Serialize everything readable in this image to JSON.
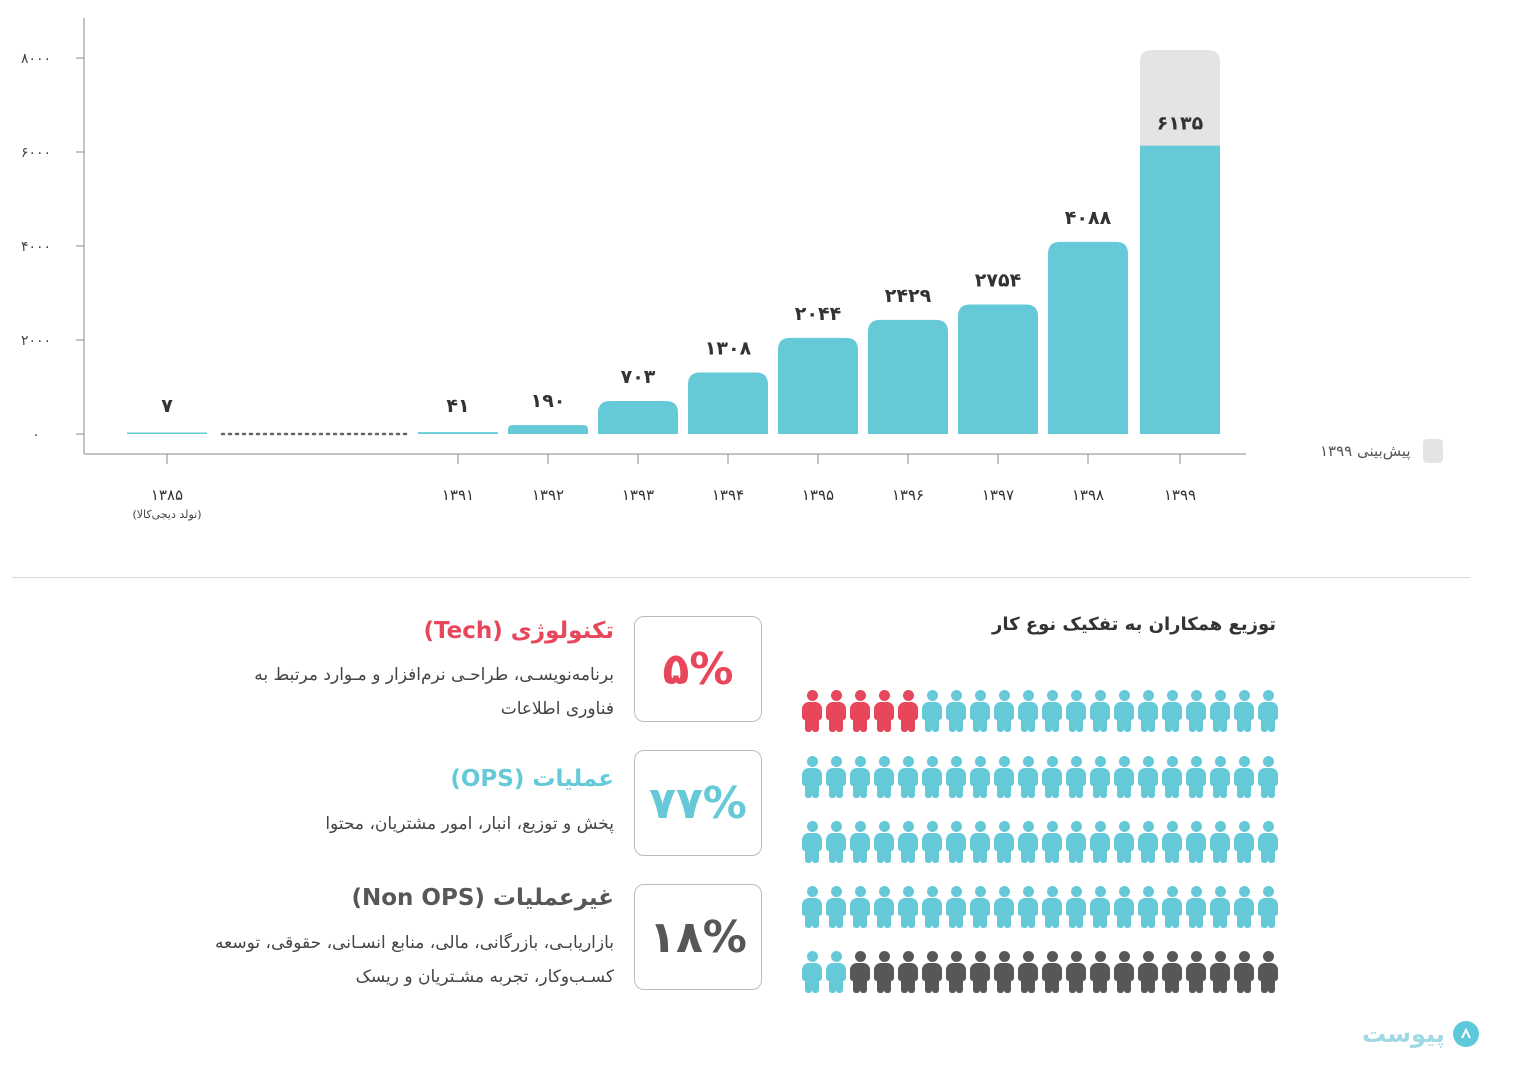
{
  "chart_data": {
    "type": "bar",
    "categories": [
      "۱۳۸۵",
      "۱۳۹۱",
      "۱۳۹۲",
      "۱۳۹۳",
      "۱۳۹۴",
      "۱۳۹۵",
      "۱۳۹۶",
      "۱۳۹۷",
      "۱۳۹۸",
      "۱۳۹۹"
    ],
    "category_sublabels": [
      "(تولد دیجی‌کالا)",
      "",
      "",
      "",
      "",
      "",
      "",
      "",
      "",
      ""
    ],
    "values": [
      7,
      41,
      190,
      703,
      1308,
      2044,
      2429,
      2754,
      4088,
      6135
    ],
    "value_labels": [
      "۷",
      "۴۱",
      "۱۹۰",
      "۷۰۳",
      "۱۳۰۸",
      "۲۰۴۴",
      "۲۴۲۹",
      "۲۷۵۴",
      "۴۰۸۸",
      "۶۱۳۵"
    ],
    "forecast_index": 9,
    "yticks": [
      0,
      2000,
      4000,
      6000,
      8000
    ],
    "ytick_labels": [
      "۰",
      "۲۰۰۰",
      "۴۰۰۰",
      "۶۰۰۰",
      "۸۰۰۰"
    ],
    "ylim": [
      0,
      8000
    ],
    "legend": {
      "label": "پیش‌بینی ۱۳۹۹",
      "placement": "right"
    },
    "colors": {
      "bar": "#65c9d8",
      "forecast": "#e4e4e4",
      "axis": "#888888"
    }
  },
  "distribution": {
    "title": "توزیع همکاران به تفکیک نوع کار",
    "rows": [
      [
        "#e8465a",
        "#e8465a",
        "#e8465a",
        "#e8465a",
        "#e8465a",
        "#65c9d8",
        "#65c9d8",
        "#65c9d8",
        "#65c9d8",
        "#65c9d8",
        "#65c9d8",
        "#65c9d8",
        "#65c9d8",
        "#65c9d8",
        "#65c9d8",
        "#65c9d8",
        "#65c9d8",
        "#65c9d8",
        "#65c9d8",
        "#65c9d8"
      ],
      [
        "#65c9d8",
        "#65c9d8",
        "#65c9d8",
        "#65c9d8",
        "#65c9d8",
        "#65c9d8",
        "#65c9d8",
        "#65c9d8",
        "#65c9d8",
        "#65c9d8",
        "#65c9d8",
        "#65c9d8",
        "#65c9d8",
        "#65c9d8",
        "#65c9d8",
        "#65c9d8",
        "#65c9d8",
        "#65c9d8",
        "#65c9d8",
        "#65c9d8"
      ],
      [
        "#65c9d8",
        "#65c9d8",
        "#65c9d8",
        "#65c9d8",
        "#65c9d8",
        "#65c9d8",
        "#65c9d8",
        "#65c9d8",
        "#65c9d8",
        "#65c9d8",
        "#65c9d8",
        "#65c9d8",
        "#65c9d8",
        "#65c9d8",
        "#65c9d8",
        "#65c9d8",
        "#65c9d8",
        "#65c9d8",
        "#65c9d8",
        "#65c9d8"
      ],
      [
        "#65c9d8",
        "#65c9d8",
        "#65c9d8",
        "#65c9d8",
        "#65c9d8",
        "#65c9d8",
        "#65c9d8",
        "#65c9d8",
        "#65c9d8",
        "#65c9d8",
        "#65c9d8",
        "#65c9d8",
        "#65c9d8",
        "#65c9d8",
        "#65c9d8",
        "#65c9d8",
        "#65c9d8",
        "#65c9d8",
        "#65c9d8",
        "#65c9d8"
      ],
      [
        "#65c9d8",
        "#65c9d8",
        "#555759",
        "#555759",
        "#555759",
        "#555759",
        "#555759",
        "#555759",
        "#555759",
        "#555759",
        "#555759",
        "#555759",
        "#555759",
        "#555759",
        "#555759",
        "#555759",
        "#555759",
        "#555759",
        "#555759",
        "#555759"
      ]
    ],
    "categories": [
      {
        "percent": "۵%",
        "title": "تکنولوژی (Tech)",
        "description": "برنامه‌نویسـی، طراحـی نرم‌افزار و مـوارد مرتبط به فناوری اطلاعات",
        "color": "#e8465a"
      },
      {
        "percent": "۷۷%",
        "title": "عملیات (OPS)",
        "description": "پخش و توزیع، انبار، امور مشتریان، محتوا",
        "color": "#65c9d8"
      },
      {
        "percent": "۱۸%",
        "title": "غیرعملیات (Non OPS)",
        "description": "بازاریابـی، بازرگانی، مالی، منابع انسـانی، حقوقی، توسعه کسـب‌وکار، تجربه مشـتریان و ریسک",
        "color": "#555759"
      }
    ]
  },
  "brand": {
    "name": "پیوست",
    "color": "#5ec9da"
  }
}
